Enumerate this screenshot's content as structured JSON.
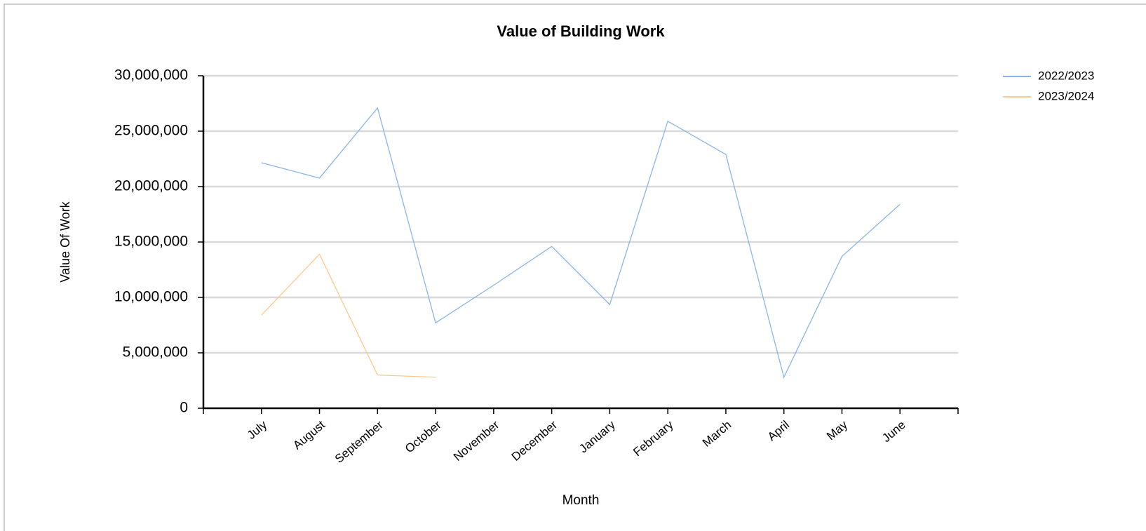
{
  "chart_data": {
    "type": "line",
    "title": "Value of Building Work",
    "x_label": "Month",
    "y_label": "Value Of Work",
    "categories": [
      "July",
      "August",
      "September",
      "October",
      "November",
      "December",
      "January",
      "February",
      "March",
      "April",
      "May",
      "June"
    ],
    "series": [
      {
        "name": "2022/2023",
        "color": "#8ab4e8",
        "values": [
          22150000,
          20770000,
          27100000,
          7700000,
          11100000,
          14600000,
          9360000,
          25900000,
          22900000,
          2800000,
          13700000,
          18400000
        ]
      },
      {
        "name": "2023/2024",
        "color": "#fdc98a",
        "values": [
          8400000,
          13900000,
          3000000,
          2800000,
          null,
          null,
          null,
          null,
          null,
          null,
          null,
          null
        ]
      }
    ],
    "ylim": [
      0,
      30000000
    ],
    "yticks": [
      0,
      {
        "value": 5000000,
        "label": "5,000,000"
      },
      {
        "value": 10000000,
        "label": "10,000,000"
      },
      {
        "value": 15000000,
        "label": "15,000,000"
      },
      {
        "value": 20000000,
        "label": "20,000,000"
      },
      {
        "value": 25000000,
        "label": "25,000,000"
      },
      {
        "value": 30000000,
        "label": "30,000,000"
      }
    ],
    "grid": true,
    "legend": "top-right"
  }
}
